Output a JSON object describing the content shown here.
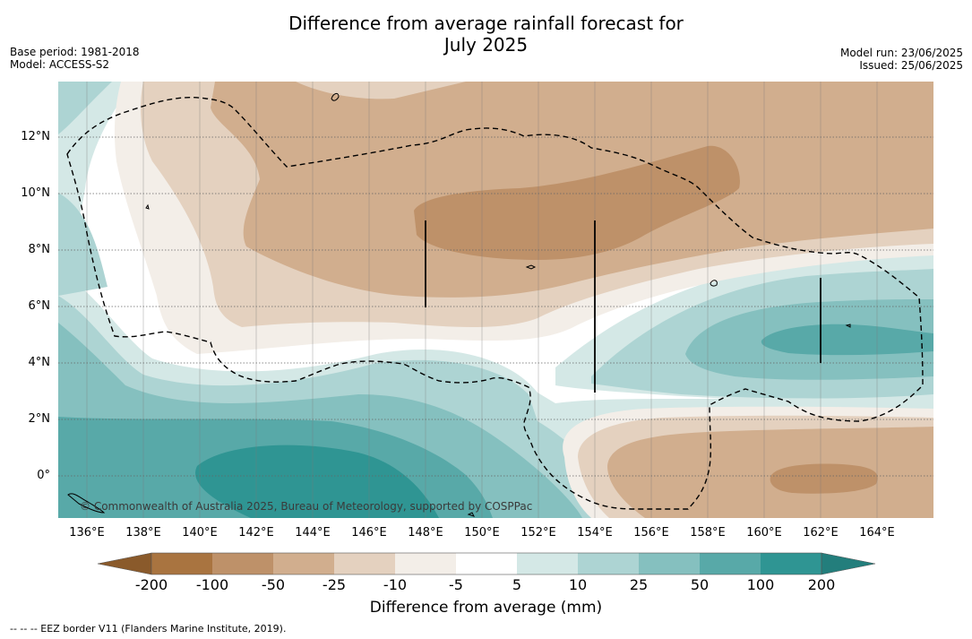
{
  "title_line1": "Difference from average rainfall forecast for",
  "title_line2": "July 2025",
  "base_period": "Base period: 1981-2018",
  "model": "Model: ACCESS-S2",
  "model_run": "Model run: 23/06/2025",
  "issued": "Issued: 25/06/2025",
  "copyright": "© Commonwealth of Australia 2025, Bureau of Meteorology, supported by COSPPac",
  "map": {
    "lon_range": [
      135,
      166
    ],
    "lat_range": [
      -1.5,
      14
    ],
    "lon_ticks": [
      "136°E",
      "138°E",
      "140°E",
      "142°E",
      "144°E",
      "146°E",
      "148°E",
      "150°E",
      "152°E",
      "154°E",
      "156°E",
      "158°E",
      "160°E",
      "162°E",
      "164°E"
    ],
    "lat_ticks": [
      "12°N",
      "10°N",
      "8°N",
      "6°N",
      "4°N",
      "2°N",
      "0°"
    ]
  },
  "colorbar": {
    "title": "Difference from average (mm)",
    "labels": [
      "-200",
      "-100",
      "-50",
      "-25",
      "-10",
      "-5",
      "5",
      "10",
      "25",
      "50",
      "100",
      "200"
    ],
    "colors": [
      "#a97440",
      "#be9169",
      "#d1ae8e",
      "#e4d1bf",
      "#f3eee8",
      "#ffffff",
      "#d4e8e6",
      "#add4d3",
      "#85c0bf",
      "#58a9a8",
      "#2f9593"
    ],
    "extend_low_color": "#8a5a2b",
    "extend_high_color": "#237e7c"
  },
  "footnote": "--  --  -- EEZ border V11 (Flanders Marine Institute, 2019)."
}
